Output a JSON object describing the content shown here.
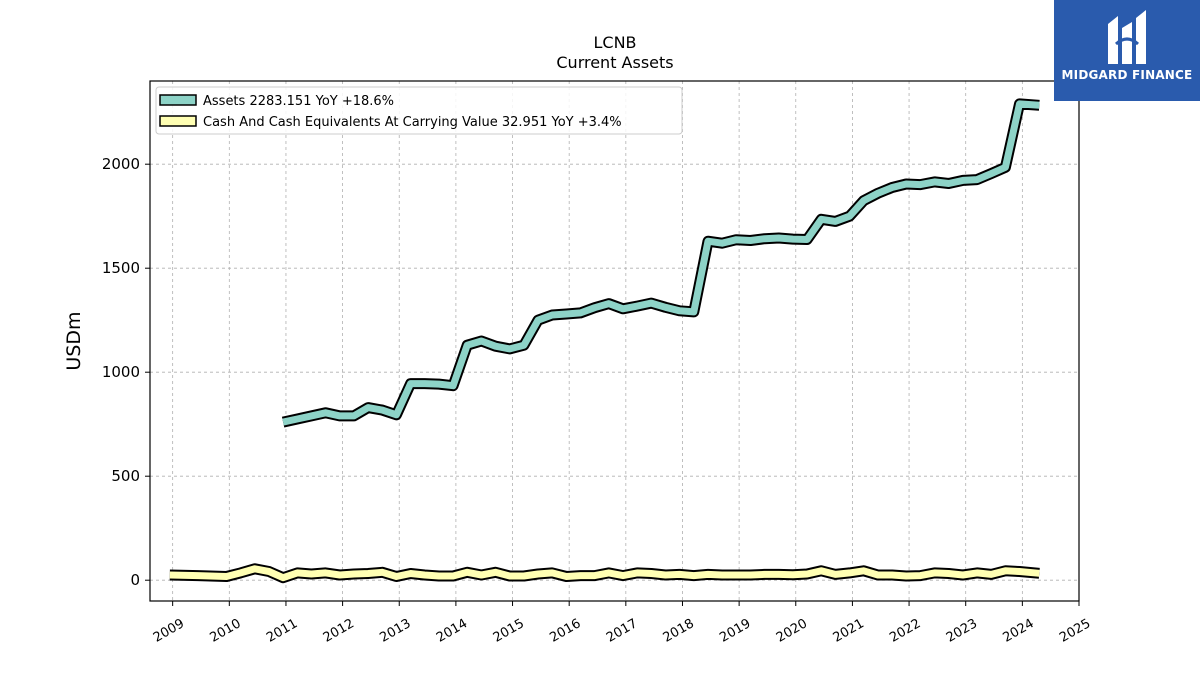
{
  "chart_data": {
    "type": "line",
    "title": "LCNB",
    "subtitle": "Current  Assets",
    "ylabel": "USDm",
    "xlabel": "",
    "ylim": [
      -100,
      2400
    ],
    "xlim": [
      2008.6,
      2025.0
    ],
    "yticks": [
      0,
      500,
      1000,
      1500,
      2000
    ],
    "xticks": [
      "2009",
      "2010",
      "2011",
      "2012",
      "2013",
      "2014",
      "2015",
      "2016",
      "2017",
      "2018",
      "2019",
      "2020",
      "2021",
      "2022",
      "2023",
      "2024",
      "2025"
    ],
    "grid": true,
    "legend_position": "top-left",
    "series": [
      {
        "name": "Assets  2283.151 YoY +18.6%",
        "color": "#8dd3c7",
        "points": [
          [
            2010.95,
            760
          ],
          [
            2011.2,
            775
          ],
          [
            2011.45,
            790
          ],
          [
            2011.7,
            805
          ],
          [
            2011.95,
            790
          ],
          [
            2012.2,
            790
          ],
          [
            2012.45,
            830
          ],
          [
            2012.7,
            818
          ],
          [
            2012.95,
            795
          ],
          [
            2013.2,
            945
          ],
          [
            2013.45,
            945
          ],
          [
            2013.7,
            943
          ],
          [
            2013.95,
            935
          ],
          [
            2014.2,
            1130
          ],
          [
            2014.45,
            1150
          ],
          [
            2014.7,
            1125
          ],
          [
            2014.95,
            1112
          ],
          [
            2015.2,
            1130
          ],
          [
            2015.45,
            1250
          ],
          [
            2015.7,
            1275
          ],
          [
            2015.95,
            1280
          ],
          [
            2016.2,
            1285
          ],
          [
            2016.45,
            1310
          ],
          [
            2016.7,
            1330
          ],
          [
            2016.95,
            1305
          ],
          [
            2017.2,
            1318
          ],
          [
            2017.45,
            1332
          ],
          [
            2017.7,
            1312
          ],
          [
            2017.95,
            1295
          ],
          [
            2018.2,
            1290
          ],
          [
            2018.45,
            1630
          ],
          [
            2018.7,
            1620
          ],
          [
            2018.95,
            1637
          ],
          [
            2019.2,
            1633
          ],
          [
            2019.45,
            1642
          ],
          [
            2019.7,
            1645
          ],
          [
            2019.95,
            1640
          ],
          [
            2020.2,
            1638
          ],
          [
            2020.45,
            1735
          ],
          [
            2020.7,
            1725
          ],
          [
            2020.95,
            1750
          ],
          [
            2021.2,
            1825
          ],
          [
            2021.45,
            1860
          ],
          [
            2021.7,
            1888
          ],
          [
            2021.95,
            1905
          ],
          [
            2022.2,
            1902
          ],
          [
            2022.45,
            1915
          ],
          [
            2022.7,
            1907
          ],
          [
            2022.95,
            1922
          ],
          [
            2023.2,
            1926
          ],
          [
            2023.45,
            1955
          ],
          [
            2023.7,
            1985
          ],
          [
            2023.95,
            2290
          ],
          [
            2024.3,
            2283
          ]
        ]
      },
      {
        "name": "Cash And Cash Equivalents At Carrying Value  32.951 YoY +3.4%",
        "color": "#ffffb3",
        "points": [
          [
            2008.95,
            25
          ],
          [
            2009.45,
            22
          ],
          [
            2009.95,
            18
          ],
          [
            2010.2,
            35
          ],
          [
            2010.45,
            55
          ],
          [
            2010.7,
            42
          ],
          [
            2010.95,
            12
          ],
          [
            2011.2,
            35
          ],
          [
            2011.45,
            30
          ],
          [
            2011.7,
            35
          ],
          [
            2011.95,
            25
          ],
          [
            2012.2,
            30
          ],
          [
            2012.45,
            32
          ],
          [
            2012.7,
            38
          ],
          [
            2012.95,
            18
          ],
          [
            2013.2,
            32
          ],
          [
            2013.45,
            25
          ],
          [
            2013.7,
            20
          ],
          [
            2013.95,
            20
          ],
          [
            2014.2,
            38
          ],
          [
            2014.45,
            25
          ],
          [
            2014.7,
            38
          ],
          [
            2014.95,
            20
          ],
          [
            2015.2,
            20
          ],
          [
            2015.45,
            30
          ],
          [
            2015.7,
            35
          ],
          [
            2015.95,
            18
          ],
          [
            2016.2,
            22
          ],
          [
            2016.45,
            22
          ],
          [
            2016.7,
            35
          ],
          [
            2016.95,
            22
          ],
          [
            2017.2,
            35
          ],
          [
            2017.45,
            32
          ],
          [
            2017.7,
            25
          ],
          [
            2017.95,
            28
          ],
          [
            2018.2,
            22
          ],
          [
            2018.45,
            28
          ],
          [
            2018.7,
            25
          ],
          [
            2018.95,
            25
          ],
          [
            2019.2,
            25
          ],
          [
            2019.45,
            28
          ],
          [
            2019.7,
            28
          ],
          [
            2019.95,
            26
          ],
          [
            2020.2,
            30
          ],
          [
            2020.45,
            45
          ],
          [
            2020.7,
            28
          ],
          [
            2020.95,
            35
          ],
          [
            2021.2,
            45
          ],
          [
            2021.45,
            25
          ],
          [
            2021.7,
            25
          ],
          [
            2021.95,
            20
          ],
          [
            2022.2,
            22
          ],
          [
            2022.45,
            35
          ],
          [
            2022.7,
            32
          ],
          [
            2022.95,
            25
          ],
          [
            2023.2,
            35
          ],
          [
            2023.45,
            28
          ],
          [
            2023.7,
            45
          ],
          [
            2023.95,
            42
          ],
          [
            2024.3,
            33
          ]
        ]
      }
    ]
  },
  "logo": {
    "text": "MIDGARD FINANCE",
    "color": "#2a5bad"
  }
}
